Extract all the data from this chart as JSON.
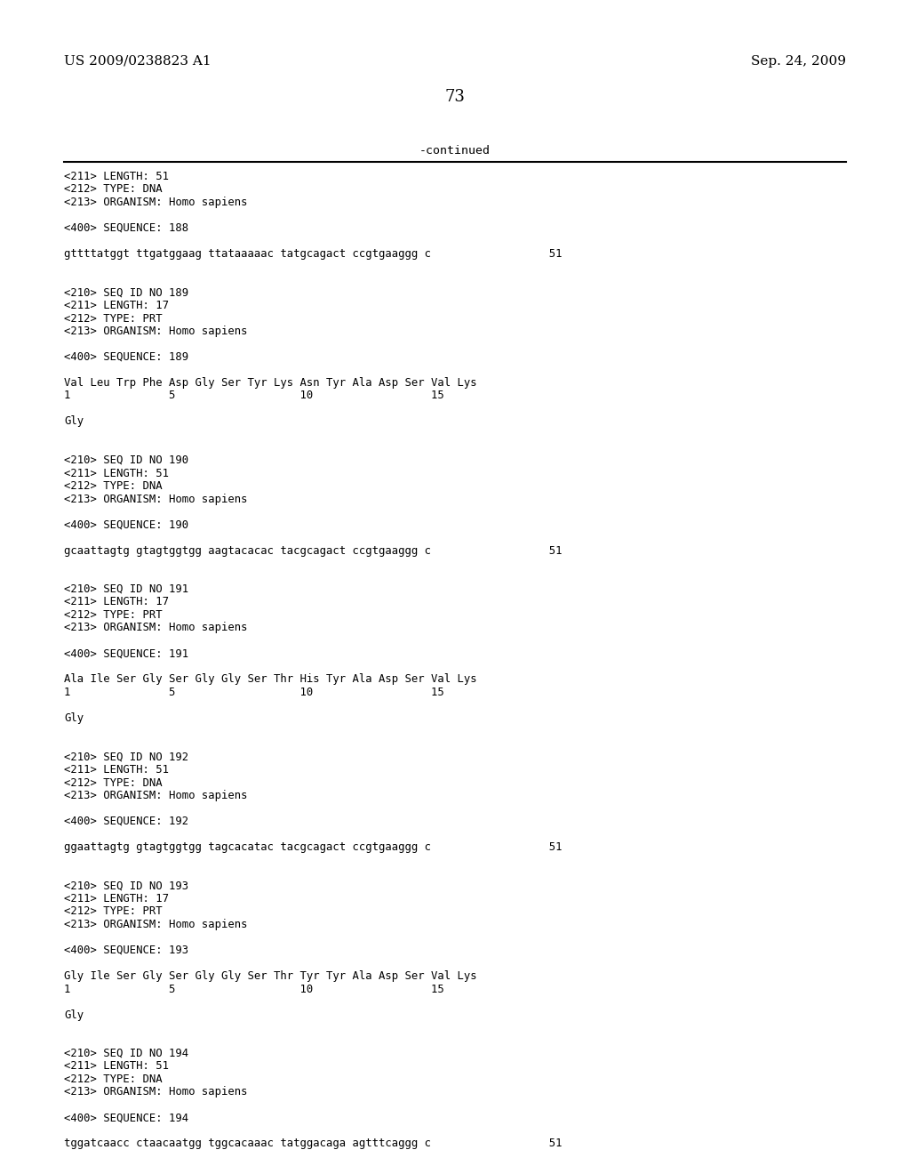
{
  "page_left": "US 2009/0238823 A1",
  "page_right": "Sep. 24, 2009",
  "page_number": "73",
  "continued_label": "-continued",
  "background_color": "#ffffff",
  "text_color": "#000000",
  "lines": [
    "<211> LENGTH: 51",
    "<212> TYPE: DNA",
    "<213> ORGANISM: Homo sapiens",
    "",
    "<400> SEQUENCE: 188",
    "",
    "gttttatggt ttgatggaag ttataaaaac tatgcagact ccgtgaaggg c                  51",
    "",
    "",
    "<210> SEQ ID NO 189",
    "<211> LENGTH: 17",
    "<212> TYPE: PRT",
    "<213> ORGANISM: Homo sapiens",
    "",
    "<400> SEQUENCE: 189",
    "",
    "Val Leu Trp Phe Asp Gly Ser Tyr Lys Asn Tyr Ala Asp Ser Val Lys",
    "1               5                   10                  15",
    "",
    "Gly",
    "",
    "",
    "<210> SEQ ID NO 190",
    "<211> LENGTH: 51",
    "<212> TYPE: DNA",
    "<213> ORGANISM: Homo sapiens",
    "",
    "<400> SEQUENCE: 190",
    "",
    "gcaattagtg gtagtggtgg aagtacacac tacgcagact ccgtgaaggg c                  51",
    "",
    "",
    "<210> SEQ ID NO 191",
    "<211> LENGTH: 17",
    "<212> TYPE: PRT",
    "<213> ORGANISM: Homo sapiens",
    "",
    "<400> SEQUENCE: 191",
    "",
    "Ala Ile Ser Gly Ser Gly Gly Ser Thr His Tyr Ala Asp Ser Val Lys",
    "1               5                   10                  15",
    "",
    "Gly",
    "",
    "",
    "<210> SEQ ID NO 192",
    "<211> LENGTH: 51",
    "<212> TYPE: DNA",
    "<213> ORGANISM: Homo sapiens",
    "",
    "<400> SEQUENCE: 192",
    "",
    "ggaattagtg gtagtggtgg tagcacatac tacgcagact ccgtgaaggg c                  51",
    "",
    "",
    "<210> SEQ ID NO 193",
    "<211> LENGTH: 17",
    "<212> TYPE: PRT",
    "<213> ORGANISM: Homo sapiens",
    "",
    "<400> SEQUENCE: 193",
    "",
    "Gly Ile Ser Gly Ser Gly Gly Ser Thr Tyr Tyr Ala Asp Ser Val Lys",
    "1               5                   10                  15",
    "",
    "Gly",
    "",
    "",
    "<210> SEQ ID NO 194",
    "<211> LENGTH: 51",
    "<212> TYPE: DNA",
    "<213> ORGANISM: Homo sapiens",
    "",
    "<400> SEQUENCE: 194",
    "",
    "tggatcaacc ctaacaatgg tggcacaaac tatggacaga agtttcaggg c                  51"
  ]
}
